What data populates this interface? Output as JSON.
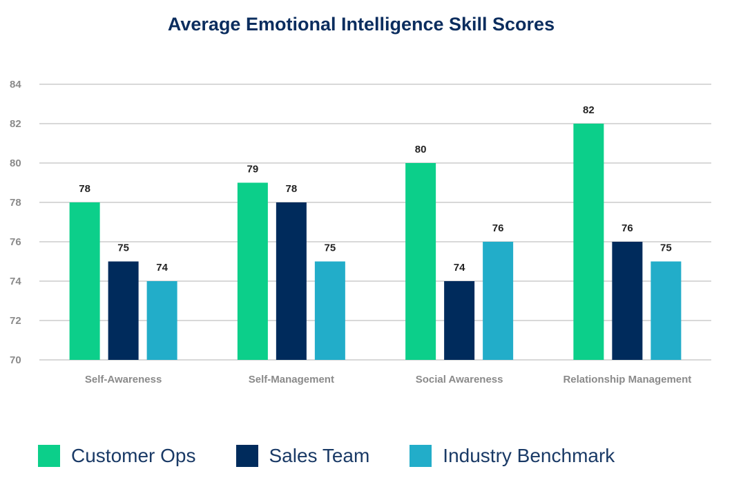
{
  "chart_data": {
    "type": "bar",
    "title": "Average Emotional Intelligence Skill Scores",
    "xlabel": "",
    "ylabel": "",
    "ylim": [
      70,
      84
    ],
    "yticks": [
      70,
      72,
      74,
      76,
      78,
      80,
      82,
      84
    ],
    "grid": true,
    "legend_position": "bottom",
    "categories": [
      "Self-Awareness",
      "Self-Management",
      "Social Awareness",
      "Relationship Management"
    ],
    "series": [
      {
        "name": "Customer Ops",
        "color": "#0ccf8a",
        "values": [
          78,
          79,
          80,
          82
        ]
      },
      {
        "name": "Sales Team",
        "color": "#002b5c",
        "values": [
          75,
          78,
          74,
          76
        ]
      },
      {
        "name": "Industry Benchmark",
        "color": "#22adc9",
        "values": [
          74,
          75,
          76,
          75
        ]
      }
    ]
  }
}
